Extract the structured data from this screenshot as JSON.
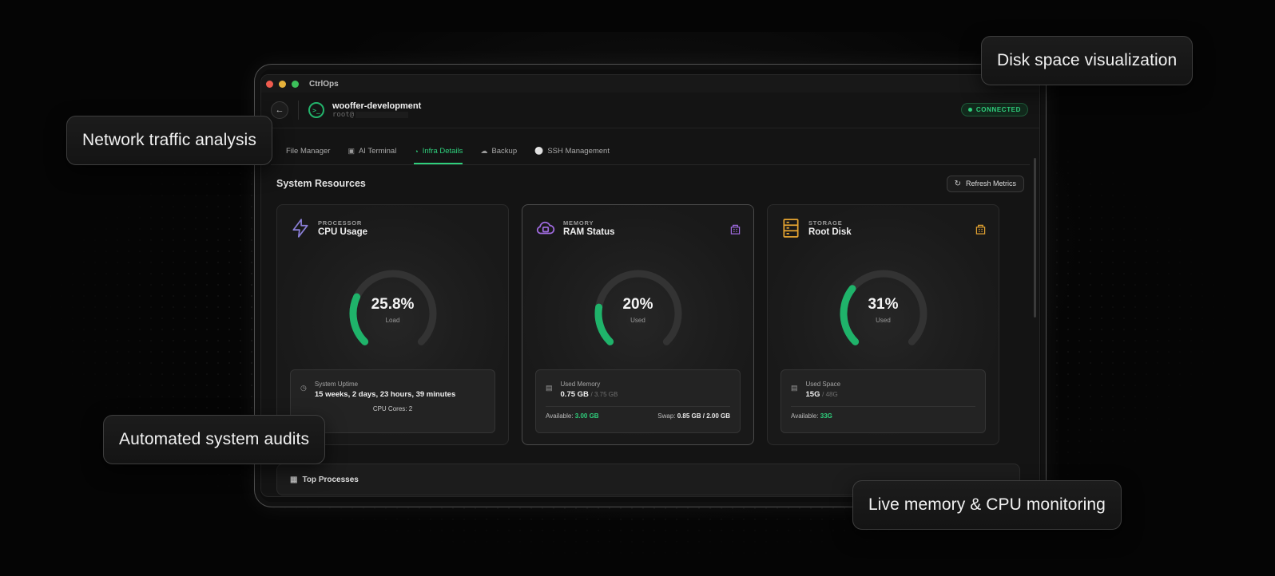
{
  "window": {
    "app_name": "CtrlOps"
  },
  "header": {
    "back_icon": "arrow-left-icon",
    "host_name": "wooffer-development",
    "host_user": "root@",
    "status": "CONNECTED"
  },
  "tabs": [
    {
      "label": "File Manager",
      "icon": "folder-icon"
    },
    {
      "label": "AI Terminal",
      "icon": "terminal-icon"
    },
    {
      "label": "Infra Details",
      "icon": "gauge-icon",
      "active": true
    },
    {
      "label": "Backup",
      "icon": "cloud-upload-icon"
    },
    {
      "label": "SSH Management",
      "icon": "user-icon"
    }
  ],
  "section": {
    "title": "System Resources",
    "refresh_label": "Refresh Metrics"
  },
  "cards": [
    {
      "kicker": "PROCESSOR",
      "name": "CPU Usage",
      "icon": "lightning-icon",
      "accent": "#8a7fd6",
      "gauge_value": "25.8%",
      "gauge_label": "Load",
      "percent": 25.8,
      "uptime_label": "System Uptime",
      "uptime_value": "15 weeks, 2 days, 23 hours, 39 minutes",
      "cores": "CPU Cores: 2"
    },
    {
      "kicker": "MEMORY",
      "name": "RAM Status",
      "icon": "cloud-chip-icon",
      "accent": "#a06be0",
      "gauge_value": "20%",
      "gauge_label": "Used",
      "percent": 20,
      "used_label": "Used Memory",
      "used_value": "0.75 GB",
      "used_total": "/ 3.75 GB",
      "available_label": "Available:",
      "available_value": "3.00 GB",
      "swap_label": "Swap:",
      "swap_value": "0.85 GB / 2.00 GB"
    },
    {
      "kicker": "STORAGE",
      "name": "Root Disk",
      "icon": "server-icon",
      "accent": "#e5a431",
      "gauge_value": "31%",
      "gauge_label": "Used",
      "percent": 31,
      "used_label": "Used Space",
      "used_value": "15G",
      "used_total": "/ 48G",
      "available_label": "Available:",
      "available_value": "33G"
    }
  ],
  "processes": {
    "title": "Top Processes"
  },
  "callouts": {
    "disk": "Disk space visualization",
    "network": "Network traffic analysis",
    "audits": "Automated system audits",
    "live": "Live memory & CPU monitoring"
  },
  "colors": {
    "accent_green": "#2fcf7c",
    "gauge_track": "#333333"
  }
}
